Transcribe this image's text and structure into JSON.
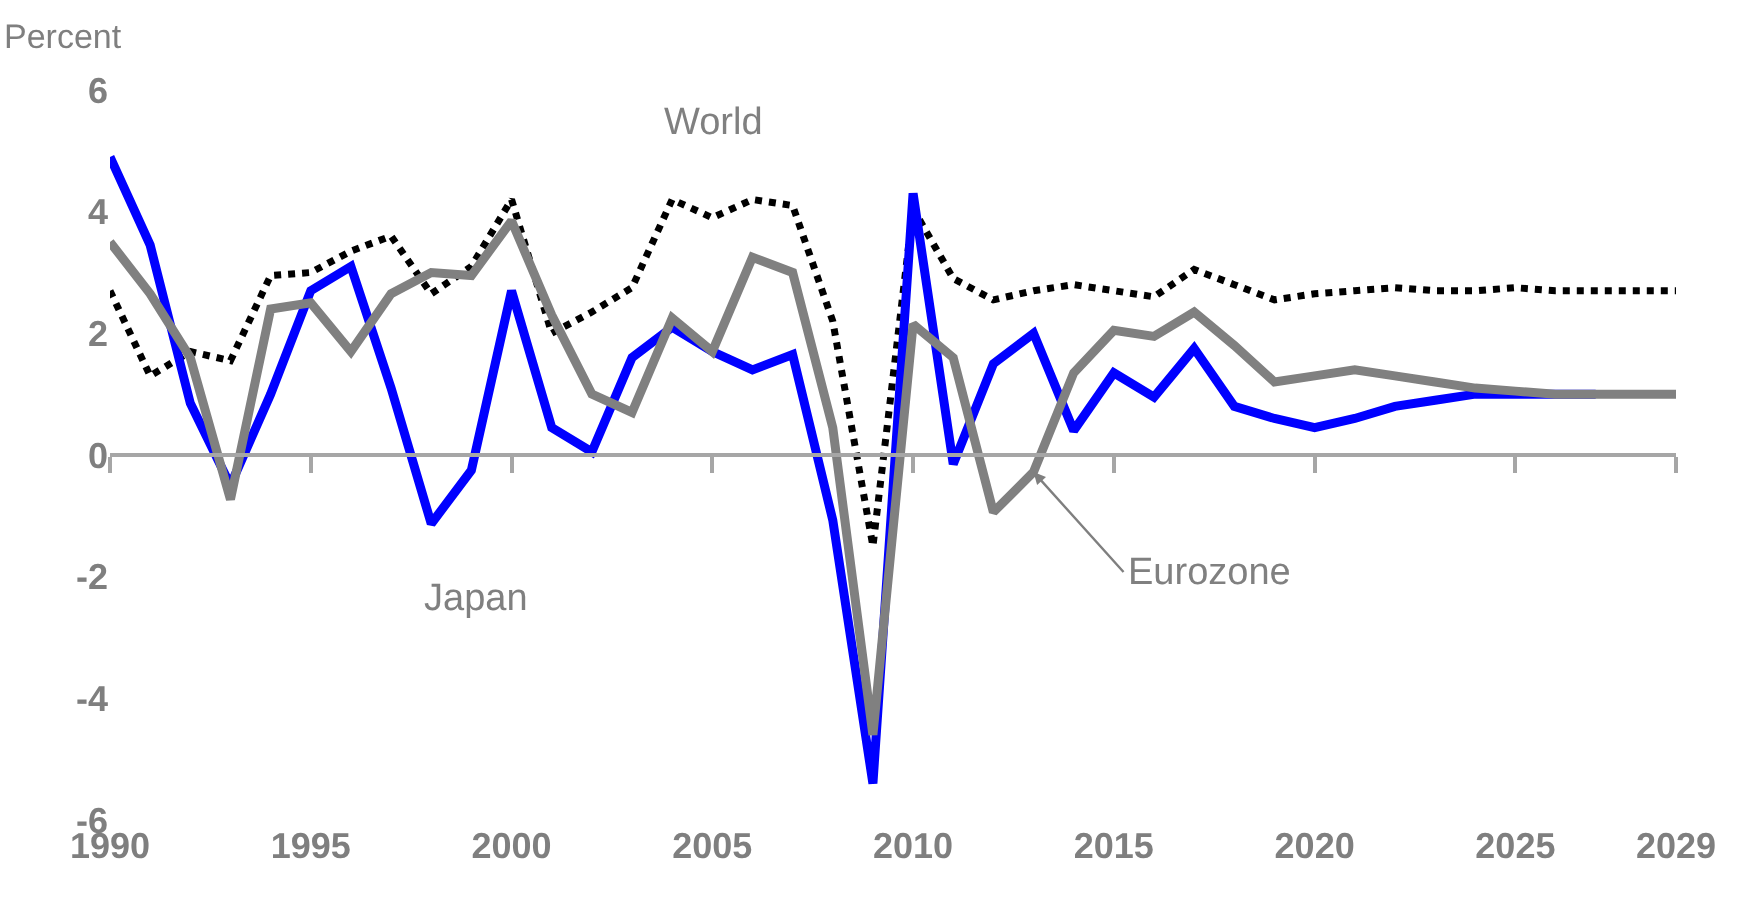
{
  "chart_data": {
    "type": "line",
    "ylabel": "Percent",
    "xlim": [
      1990,
      2029
    ],
    "xticks": [
      1990,
      1995,
      2000,
      2005,
      2010,
      2015,
      2020,
      2025,
      2029
    ],
    "ylim": [
      -6,
      6
    ],
    "yticks": [
      -6,
      -4,
      -2,
      0,
      2,
      4,
      6
    ],
    "legend": false,
    "ref_lines": [
      {
        "axis": "y",
        "value": 0,
        "color": "#a6a6a6"
      }
    ],
    "x": [
      1990,
      1991,
      1992,
      1993,
      1994,
      1995,
      1996,
      1997,
      1998,
      1999,
      2000,
      2001,
      2002,
      2003,
      2004,
      2005,
      2006,
      2007,
      2008,
      2009,
      2010,
      2011,
      2012,
      2013,
      2014,
      2015,
      2016,
      2017,
      2018,
      2019,
      2020,
      2021,
      2022,
      2023,
      2024,
      2025,
      2026,
      2027,
      2028,
      2029
    ],
    "series": [
      {
        "name": "World",
        "color": "#000000",
        "line_style": "dotted",
        "values": [
          2.7,
          1.3,
          1.7,
          1.55,
          2.95,
          3.0,
          3.35,
          3.6,
          2.65,
          3.1,
          4.2,
          2.0,
          2.35,
          2.75,
          4.2,
          3.9,
          4.2,
          4.1,
          2.2,
          -1.5,
          4.05,
          2.9,
          2.55,
          2.7,
          2.8,
          2.7,
          2.6,
          3.05,
          2.8,
          2.55,
          2.65,
          2.7,
          2.75,
          2.7,
          2.7,
          2.75,
          2.7,
          2.7,
          2.7,
          2.7
        ]
      },
      {
        "name": "Japan",
        "color": "#0000ff",
        "line_style": "solid",
        "values": [
          4.9,
          3.45,
          0.85,
          -0.5,
          1.0,
          2.7,
          3.1,
          1.1,
          -1.13,
          -0.25,
          2.7,
          0.45,
          0.05,
          1.6,
          2.1,
          1.7,
          1.4,
          1.65,
          -1.07,
          -5.4,
          4.3,
          -0.15,
          1.5,
          2.0,
          0.4,
          1.35,
          0.95,
          1.75,
          0.8,
          0.6,
          0.45,
          0.6,
          0.8,
          0.9,
          1.0,
          1.0,
          1.0,
          1.0,
          null,
          null
        ]
      },
      {
        "name": "Eurozone",
        "color": "#808080",
        "line_style": "solid",
        "values": [
          3.5,
          2.65,
          1.6,
          -0.73,
          2.4,
          2.5,
          1.7,
          2.65,
          3.0,
          2.95,
          3.85,
          2.3,
          1.0,
          0.7,
          2.25,
          1.7,
          3.25,
          3.0,
          0.45,
          -4.6,
          2.15,
          1.6,
          -0.94,
          -0.28,
          1.35,
          2.05,
          1.95,
          2.35,
          1.8,
          1.2,
          1.3,
          1.4,
          1.3,
          1.2,
          1.1,
          1.05,
          1.0,
          1.0,
          1.0,
          1.0
        ]
      }
    ]
  }
}
